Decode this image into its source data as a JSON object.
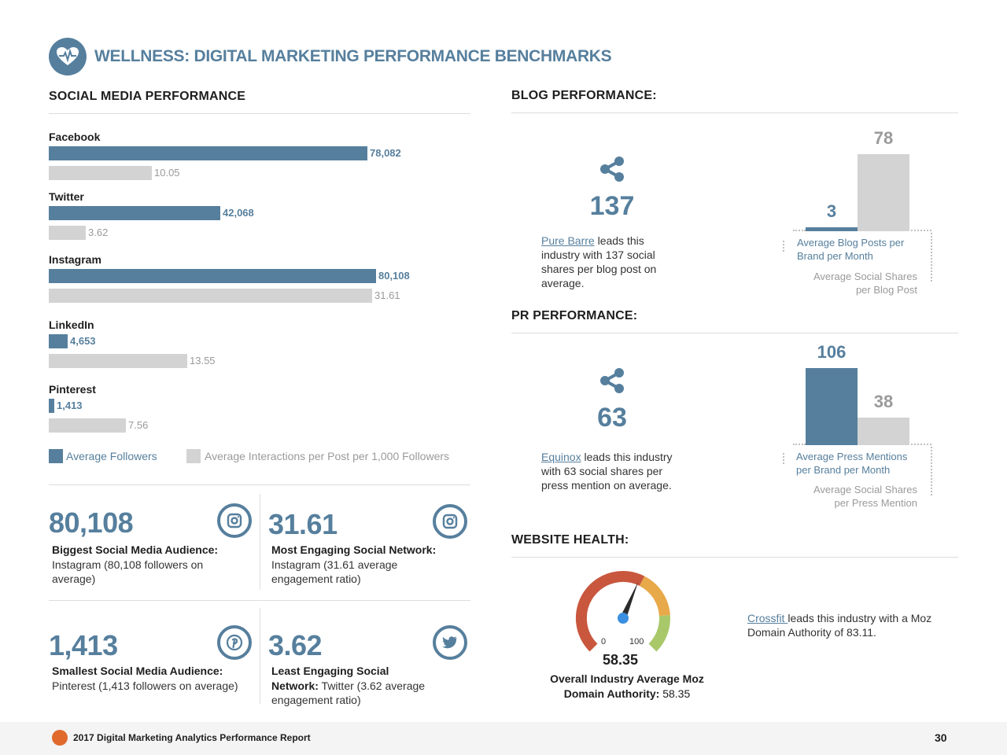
{
  "header": {
    "title": "WELLNESS: DIGITAL MARKETING PERFORMANCE BENCHMARKS",
    "icon": "heart-pulse-icon"
  },
  "social": {
    "title": "SOCIAL MEDIA PERFORMANCE",
    "legend": {
      "followers": "Average Followers",
      "interactions": "Average Interactions per Post per 1,000 Followers"
    }
  },
  "chart_data": [
    {
      "type": "bar",
      "orientation": "horizontal",
      "categories": [
        "Facebook",
        "Twitter",
        "Instagram",
        "LinkedIn",
        "Pinterest"
      ],
      "series": [
        {
          "name": "Average Followers",
          "values": [
            78082,
            42068,
            80108,
            4653,
            1413
          ],
          "labels": [
            "78,082",
            "42,068",
            "80,108",
            "4,653",
            "1,413"
          ],
          "color": "#567f9d"
        },
        {
          "name": "Average Interactions per Post per 1,000 Followers",
          "values": [
            10.05,
            3.62,
            31.61,
            13.55,
            7.56
          ],
          "labels": [
            "10.05",
            "3.62",
            "31.61",
            "13.55",
            "7.56"
          ],
          "color": "#d3d3d3"
        }
      ],
      "legend": "bottom"
    },
    {
      "type": "bar",
      "categories": [
        "Average Blog Posts per Brand per Month",
        "Average Social Shares per Blog Post"
      ],
      "values": [
        3,
        78
      ],
      "colors": [
        "#567f9d",
        "#d3d3d3"
      ]
    },
    {
      "type": "bar",
      "categories": [
        "Average Press Mentions per Brand per Month",
        "Average Social Shares per Press Mention"
      ],
      "values": [
        106,
        38
      ],
      "colors": [
        "#567f9d",
        "#d3d3d3"
      ]
    }
  ],
  "stats": [
    {
      "num": "80,108",
      "head": "Biggest Social Media Audience:",
      "desc": "Instagram (80,108 followers on average)",
      "icon": "instagram-icon"
    },
    {
      "num": "31.61",
      "head": "Most Engaging Social Network:",
      "desc": "Instagram (31.61 average engagement ratio)",
      "icon": "instagram-icon"
    },
    {
      "num": "1,413",
      "head": "Smallest Social Media Audience:",
      "desc": "Pinterest (1,413 followers on average)",
      "icon": "pinterest-icon"
    },
    {
      "num": "3.62",
      "head": "Least Engaging Social",
      "head2": "Network:",
      "desc": " Twitter (3.62 average engagement ratio)",
      "icon": "twitter-icon"
    }
  ],
  "blog": {
    "title": "BLOG PERFORMANCE:",
    "num": "137",
    "leader": "Pure Barre",
    "text": " leads this industry with 137 social shares per blog post on average.",
    "bar1_label": "3",
    "bar2_label": "78",
    "cap_blue": "Average Blog Posts per Brand per Month",
    "cap_grey": "Average Social Shares per Blog Post"
  },
  "pr": {
    "title": "PR PERFORMANCE:",
    "num": "63",
    "leader": "Equinox",
    "text": " leads this industry with 63 social shares per press mention on average.",
    "bar1_label": "106",
    "bar2_label": "38",
    "cap_blue": "Average Press Mentions per Brand per Month",
    "cap_grey": "Average Social Shares per Press Mention"
  },
  "web": {
    "title": "WEBSITE HEALTH:",
    "gauge_min": "0",
    "gauge_max": "100",
    "gauge_value": 58.35,
    "gauge_value_label": "58.35",
    "caption_line1": "Overall Industry Average Moz",
    "caption_line2_bold": "Domain Authority:",
    "caption_line2_val": " 58.35",
    "leader": "Crossfit ",
    "text": "leads this industry with a Moz Domain Authority of 83.11."
  },
  "footer": {
    "text": "2017 Digital Marketing Analytics Performance Report",
    "page": "30"
  }
}
